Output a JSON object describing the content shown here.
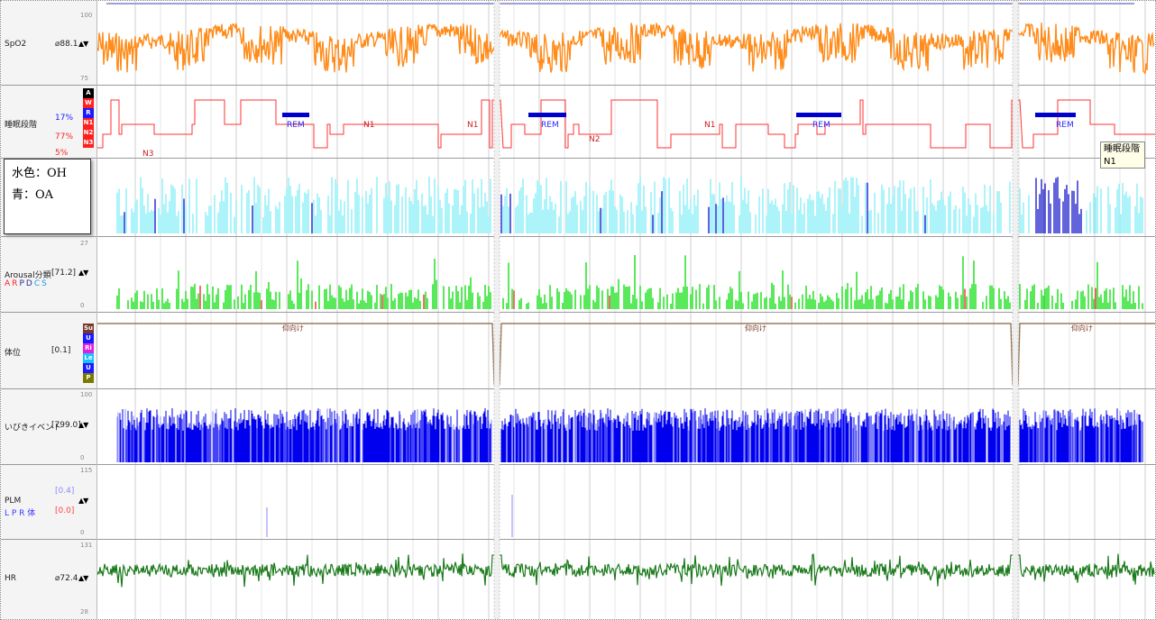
{
  "rows": {
    "spo2": {
      "name": "SpO2",
      "value": "⌀88.1",
      "scale_max": "100",
      "scale_min": "75",
      "color": "#ff8c1a"
    },
    "sleep": {
      "name": "睡眠段階",
      "pct_r": "17%",
      "pct_n1": "77%",
      "pct_n2": "5%",
      "codes": [
        "A",
        "W",
        "R",
        "N1",
        "N2",
        "N3"
      ],
      "code_colors": [
        "#000000",
        "#ff2020",
        "#1a1aff",
        "#ff2020",
        "#ff2020",
        "#ff2020"
      ],
      "color": "#ff3030",
      "rem_color": "#0000cc",
      "labels": [
        "N3",
        "REM",
        "N1",
        "N1",
        "REM",
        "N2",
        "N1",
        "REM",
        "REM"
      ]
    },
    "arousal": {
      "name": "Arousal分類",
      "value": "[71.2]",
      "scale_max": "27",
      "scale_min": "0",
      "types": [
        "A",
        "R",
        "P",
        "D",
        "C",
        "S"
      ],
      "type_colors": [
        "#ff2020",
        "#ff2020",
        "#2a2a9a",
        "#2a2a9a",
        "#1a9ae0",
        "#1a9ae0"
      ],
      "color": "#00dd00"
    },
    "position": {
      "name": "体位",
      "value": "[0.1]",
      "codes": [
        "Su",
        "U",
        "Ri",
        "Le",
        "U",
        "P"
      ],
      "code_colors": [
        "#7a3a2a",
        "#1a1aff",
        "#e020e0",
        "#1ac0ff",
        "#1a1aff",
        "#7a7a00"
      ],
      "labels": [
        "仰向け",
        "仰向け",
        "仰向け"
      ],
      "color": "#9a7a5a"
    },
    "snore": {
      "name": "いびきイベント",
      "value": "[799.0]",
      "scale_max": "100",
      "scale_min": "0",
      "color": "#0000ee",
      "light_color": "#8888ff"
    },
    "plm": {
      "name": "PLM",
      "value_top": "[0.4]",
      "value_bottom": "[0.0]",
      "sub": "L P R 体",
      "scale_max": "115",
      "scale_min": "0"
    },
    "hr": {
      "name": "HR",
      "value": "⌀72.4",
      "scale_max": "131",
      "scale_min": "28",
      "color": "#1a7a1a"
    }
  },
  "legend": {
    "line1": "水色：OH",
    "line2": "青：OA",
    "oh_color": "#88f0f8",
    "oa_color": "#2020cc"
  },
  "tooltip": {
    "line1": "睡眠段階",
    "line2": "N1"
  },
  "arrow_glyph": "▲▼"
}
